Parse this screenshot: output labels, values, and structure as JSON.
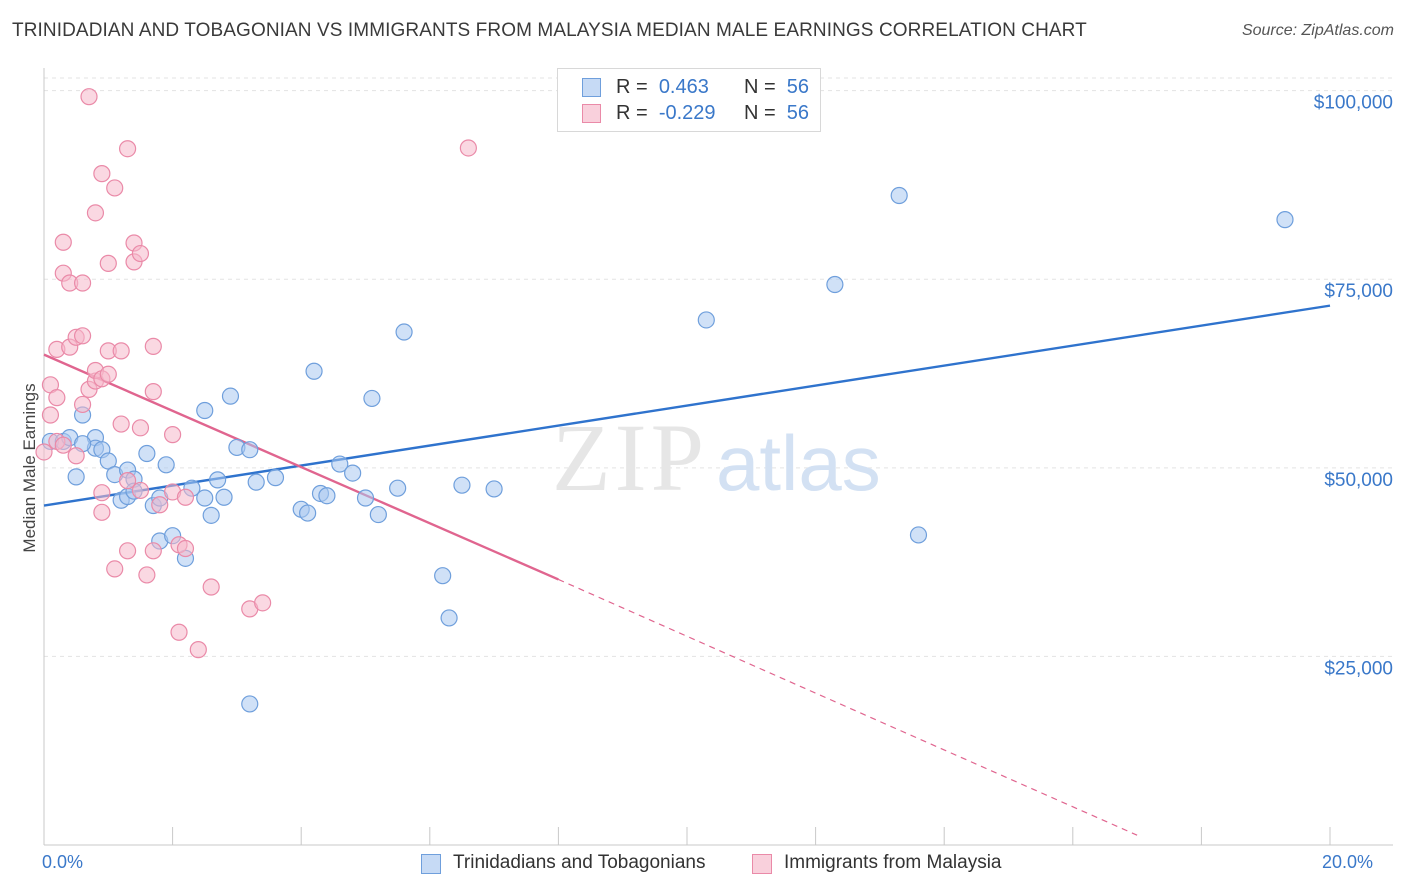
{
  "title": "TRINIDADIAN AND TOBAGONIAN VS IMMIGRANTS FROM MALAYSIA MEDIAN MALE EARNINGS CORRELATION CHART",
  "source": "Source: ZipAtlas.com",
  "watermark": {
    "zip": "ZIP",
    "atlas": "atlas"
  },
  "legend": {
    "rows": [
      {
        "r_label": "R =",
        "r_value": "0.463",
        "n_label": "N =",
        "n_value": "56",
        "color": "#a9c8f0"
      },
      {
        "r_label": "R =",
        "r_value": "-0.229",
        "n_label": "N =",
        "n_value": "56",
        "color": "#f6b8cb"
      }
    ]
  },
  "colors": {
    "blue_fill": "#a9c8f0",
    "blue_stroke": "#6f9fdc",
    "blue_line": "#2f73cd",
    "pink_fill": "#f6b8cb",
    "pink_stroke": "#ea8aa8",
    "pink_line": "#e0658f",
    "tick_label": "#3a78c9",
    "grid": "#e3e3e3"
  },
  "chart_data": {
    "type": "scatter",
    "title": "TRINIDADIAN AND TOBAGONIAN VS IMMIGRANTS FROM MALAYSIA MEDIAN MALE EARNINGS CORRELATION CHART",
    "xlabel": "",
    "ylabel": "Median Male Earnings",
    "x_tick_labels": [
      "0.0%",
      "20.0%"
    ],
    "y_tick_labels": [
      "$25,000",
      "$50,000",
      "$75,000",
      "$100,000"
    ],
    "y_ticks": [
      25000,
      50000,
      75000,
      100000
    ],
    "xlim": [
      0,
      20
    ],
    "ylim": [
      0,
      103000
    ],
    "grid": true,
    "legend_position": "bottom",
    "series": [
      {
        "name": "Trinidadians and Tobagonians",
        "color": "#a9c8f0",
        "trend": {
          "x": [
            0,
            20
          ],
          "y": [
            45000,
            71500
          ],
          "style": "solid"
        },
        "points": [
          [
            0.1,
            53.5
          ],
          [
            0.3,
            53.5
          ],
          [
            0.4,
            54.0
          ],
          [
            0.5,
            48.8
          ],
          [
            0.6,
            57.0
          ],
          [
            0.8,
            54.0
          ],
          [
            0.8,
            52.6
          ],
          [
            0.9,
            52.4
          ],
          [
            1.0,
            50.9
          ],
          [
            1.1,
            49.1
          ],
          [
            1.2,
            45.7
          ],
          [
            1.3,
            46.2
          ],
          [
            1.3,
            49.7
          ],
          [
            1.4,
            48.5
          ],
          [
            1.6,
            51.9
          ],
          [
            1.7,
            45.0
          ],
          [
            1.8,
            46.0
          ],
          [
            1.8,
            40.3
          ],
          [
            1.9,
            50.4
          ],
          [
            2.0,
            41.0
          ],
          [
            2.2,
            38.0
          ],
          [
            2.3,
            47.3
          ],
          [
            2.5,
            57.6
          ],
          [
            2.5,
            46.0
          ],
          [
            2.6,
            43.7
          ],
          [
            2.8,
            46.1
          ],
          [
            2.9,
            59.5
          ],
          [
            3.0,
            52.7
          ],
          [
            3.2,
            52.4
          ],
          [
            3.3,
            48.1
          ],
          [
            3.2,
            18.7
          ],
          [
            3.6,
            48.7
          ],
          [
            4.0,
            44.5
          ],
          [
            4.1,
            44.0
          ],
          [
            4.2,
            62.8
          ],
          [
            4.3,
            46.6
          ],
          [
            4.4,
            46.3
          ],
          [
            4.6,
            50.5
          ],
          [
            4.8,
            49.3
          ],
          [
            5.0,
            46.0
          ],
          [
            5.1,
            59.2
          ],
          [
            5.2,
            43.8
          ],
          [
            5.5,
            47.3
          ],
          [
            5.6,
            68.0
          ],
          [
            6.2,
            35.7
          ],
          [
            6.3,
            30.1
          ],
          [
            6.5,
            47.7
          ],
          [
            7.0,
            47.2
          ],
          [
            10.3,
            69.6
          ],
          [
            12.3,
            74.3
          ],
          [
            13.3,
            86.1
          ],
          [
            13.6,
            41.1
          ],
          [
            19.3,
            82.9
          ],
          [
            0.6,
            53.2
          ],
          [
            1.4,
            46.9
          ],
          [
            2.7,
            48.4
          ]
        ]
      },
      {
        "name": "Immigrants from Malaysia",
        "color": "#f6b8cb",
        "trend": {
          "x": [
            0,
            8
          ],
          "y": [
            65000,
            35200
          ],
          "extended_to": [
            17.0,
            1300
          ],
          "style": "solid-then-dashed"
        },
        "points": [
          [
            0.1,
            61.0
          ],
          [
            0.1,
            57.0
          ],
          [
            0.2,
            59.3
          ],
          [
            0.2,
            65.7
          ],
          [
            0.3,
            75.8
          ],
          [
            0.3,
            79.9
          ],
          [
            0.4,
            74.5
          ],
          [
            0.4,
            66.0
          ],
          [
            0.5,
            67.3
          ],
          [
            0.5,
            51.6
          ],
          [
            0.6,
            74.5
          ],
          [
            0.6,
            67.5
          ],
          [
            0.6,
            58.4
          ],
          [
            0.7,
            60.4
          ],
          [
            0.8,
            61.5
          ],
          [
            0.7,
            99.2
          ],
          [
            0.8,
            83.8
          ],
          [
            0.8,
            62.9
          ],
          [
            0.9,
            46.7
          ],
          [
            0.9,
            44.1
          ],
          [
            0.9,
            61.8
          ],
          [
            0.9,
            89.0
          ],
          [
            1.0,
            77.1
          ],
          [
            1.1,
            87.1
          ],
          [
            1.0,
            65.5
          ],
          [
            1.1,
            36.6
          ],
          [
            1.2,
            55.8
          ],
          [
            1.2,
            65.5
          ],
          [
            1.3,
            92.3
          ],
          [
            1.3,
            39.0
          ],
          [
            1.3,
            48.3
          ],
          [
            1.4,
            77.3
          ],
          [
            1.4,
            79.8
          ],
          [
            1.5,
            78.4
          ],
          [
            1.5,
            55.3
          ],
          [
            1.6,
            35.8
          ],
          [
            1.7,
            39.0
          ],
          [
            1.7,
            66.1
          ],
          [
            1.7,
            60.1
          ],
          [
            1.8,
            45.1
          ],
          [
            2.0,
            46.8
          ],
          [
            2.0,
            54.4
          ],
          [
            2.1,
            39.8
          ],
          [
            2.1,
            28.2
          ],
          [
            2.2,
            46.1
          ],
          [
            2.2,
            39.3
          ],
          [
            2.4,
            25.9
          ],
          [
            2.6,
            34.2
          ],
          [
            3.2,
            31.3
          ],
          [
            3.4,
            32.1
          ],
          [
            6.6,
            92.4
          ],
          [
            0.0,
            52.1
          ],
          [
            0.2,
            53.5
          ],
          [
            0.3,
            53.0
          ],
          [
            1.0,
            62.4
          ],
          [
            1.5,
            47.0
          ]
        ]
      }
    ]
  },
  "bottom_legend": [
    {
      "label": "Trinidadians and Tobagonians",
      "color": "#a9c8f0"
    },
    {
      "label": "Immigrants from Malaysia",
      "color": "#f6b8cb"
    }
  ]
}
